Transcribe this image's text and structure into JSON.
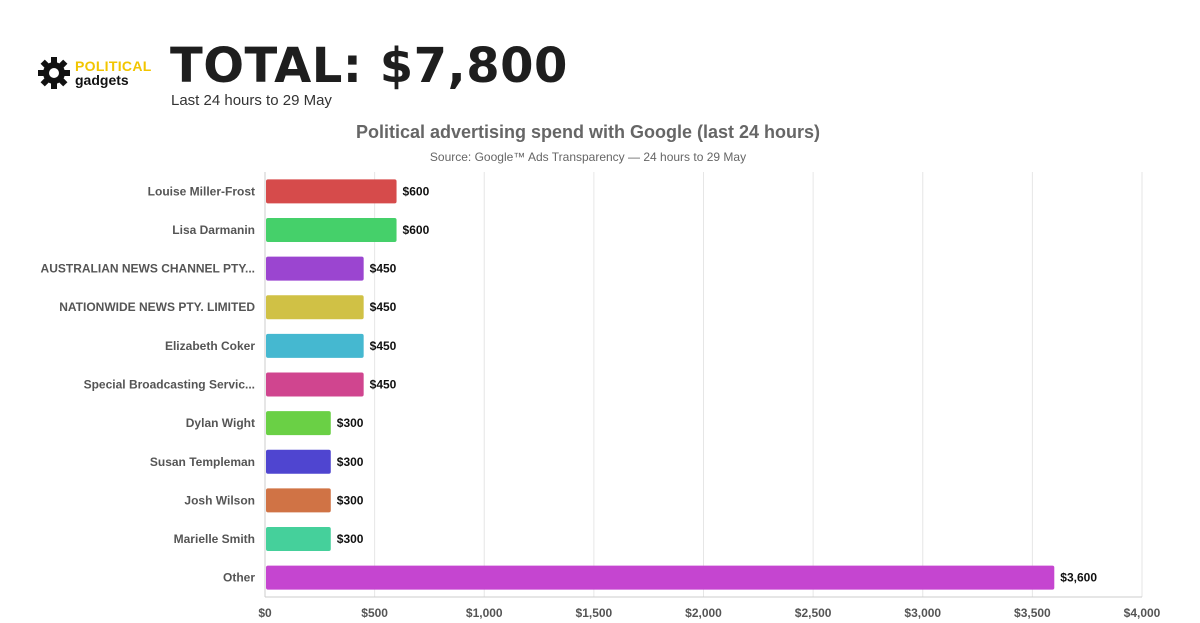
{
  "brand": {
    "line1": "POLITICAL",
    "line2": "gadgets",
    "icon": "gear-icon"
  },
  "header": {
    "total": "TOTAL: $7,800",
    "subtitle": "Last 24 hours to 29 May"
  },
  "chart_data": {
    "type": "bar",
    "orientation": "horizontal",
    "title": "Political advertising spend with Google (last 24 hours)",
    "subtitle": "Source: Google™ Ads Transparency — 24 hours to 29 May",
    "categories": [
      "Louise Miller-Frost",
      "Lisa Darmanin",
      "AUSTRALIAN NEWS CHANNEL PTY...",
      "NATIONWIDE NEWS PTY. LIMITED",
      "Elizabeth Coker",
      "Special Broadcasting Servic...",
      "Dylan Wight",
      "Susan Templeman",
      "Josh Wilson",
      "Marielle Smith",
      "Other"
    ],
    "values": [
      600,
      600,
      450,
      450,
      450,
      450,
      300,
      300,
      300,
      300,
      3600
    ],
    "value_labels": [
      "$600",
      "$600",
      "$450",
      "$450",
      "$450",
      "$450",
      "$300",
      "$300",
      "$300",
      "$300",
      "$3,600"
    ],
    "colors": [
      "#d64b4b",
      "#45d06a",
      "#9b45d0",
      "#d0c145",
      "#45b8d0",
      "#d0458f",
      "#6ad045",
      "#4f45d0",
      "#d07345",
      "#45d09b",
      "#c545d0"
    ],
    "xlim": [
      0,
      4000
    ],
    "xticks": [
      0,
      500,
      1000,
      1500,
      2000,
      2500,
      3000,
      3500,
      4000
    ],
    "xtick_labels": [
      "$0",
      "$500",
      "$1,000",
      "$1,500",
      "$2,000",
      "$2,500",
      "$3,000",
      "$3,500",
      "$4,000"
    ],
    "grid": true
  }
}
